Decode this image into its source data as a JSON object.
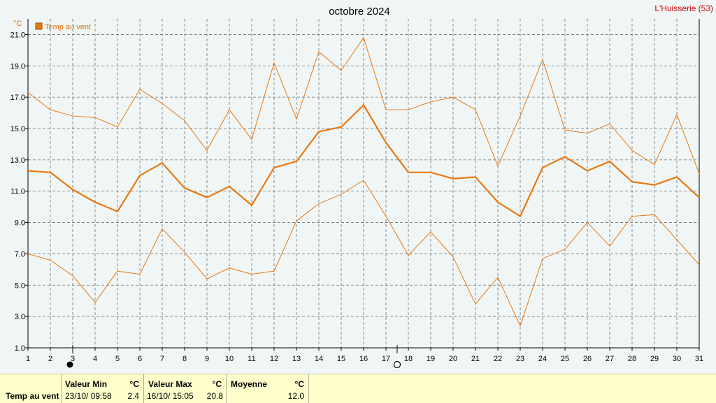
{
  "header": {
    "title": "octobre 2024",
    "station": "L'Huisserie (53)",
    "unit": "°C",
    "legend_label": "Temp au vent"
  },
  "colors": {
    "series": "#e87810",
    "grid": "#707070",
    "background": "#f0f6f6",
    "footer": "#ffffcc",
    "station": "#cc0000"
  },
  "chart_data": {
    "type": "line",
    "title": "octobre 2024",
    "ylabel": "°C",
    "ylim": [
      1.0,
      22.0
    ],
    "yticks": [
      1.0,
      3.0,
      5.0,
      7.0,
      9.0,
      11.0,
      13.0,
      15.0,
      17.0,
      19.0,
      21.0
    ],
    "x": [
      1,
      2,
      3,
      4,
      5,
      6,
      7,
      8,
      9,
      10,
      11,
      12,
      13,
      14,
      15,
      16,
      17,
      18,
      19,
      20,
      21,
      22,
      23,
      24,
      25,
      26,
      27,
      28,
      29,
      30,
      31
    ],
    "grid": true,
    "legend": "top-left",
    "markers": {
      "full_moon_day": 3,
      "new_moon_day": 17.5
    },
    "series": [
      {
        "name": "Temp au vent",
        "role": "max",
        "values": [
          17.3,
          16.2,
          15.8,
          15.7,
          15.1,
          17.5,
          16.6,
          15.5,
          13.6,
          16.2,
          14.3,
          19.2,
          15.6,
          19.9,
          18.7,
          20.8,
          16.2,
          16.2,
          16.7,
          17.0,
          16.2,
          12.6,
          15.8,
          19.4,
          14.9,
          14.7,
          15.3,
          13.6,
          12.7,
          15.9,
          12.1
        ]
      },
      {
        "name": "Temp au vent",
        "role": "mean",
        "values": [
          12.3,
          12.2,
          11.1,
          10.3,
          9.7,
          12.0,
          12.8,
          11.2,
          10.6,
          11.3,
          10.1,
          12.5,
          12.9,
          14.8,
          15.1,
          16.5,
          14.1,
          12.2,
          12.2,
          11.8,
          11.9,
          10.3,
          9.4,
          12.5,
          13.2,
          12.3,
          12.9,
          11.6,
          11.4,
          11.9,
          10.6
        ]
      },
      {
        "name": "Temp au vent",
        "role": "min",
        "values": [
          7.0,
          6.6,
          5.6,
          3.9,
          5.9,
          5.7,
          8.6,
          7.1,
          5.4,
          6.1,
          5.7,
          5.9,
          9.1,
          10.2,
          10.8,
          11.7,
          9.4,
          6.9,
          8.4,
          6.8,
          3.8,
          5.5,
          2.4,
          6.7,
          7.3,
          9.0,
          7.5,
          9.4,
          9.5,
          7.9,
          6.3
        ]
      }
    ]
  },
  "summary": {
    "row_label": "Temp au vent",
    "min_header": "Valeur Min",
    "min_unit": "°C",
    "min_date": "23/10/  09:58",
    "min_value": "2.4",
    "max_header": "Valeur Max",
    "max_unit": "°C",
    "max_date": "16/10/  15:05",
    "max_value": "20.8",
    "mean_header": "Moyenne",
    "mean_unit": "°C",
    "mean_value": "12.0"
  }
}
